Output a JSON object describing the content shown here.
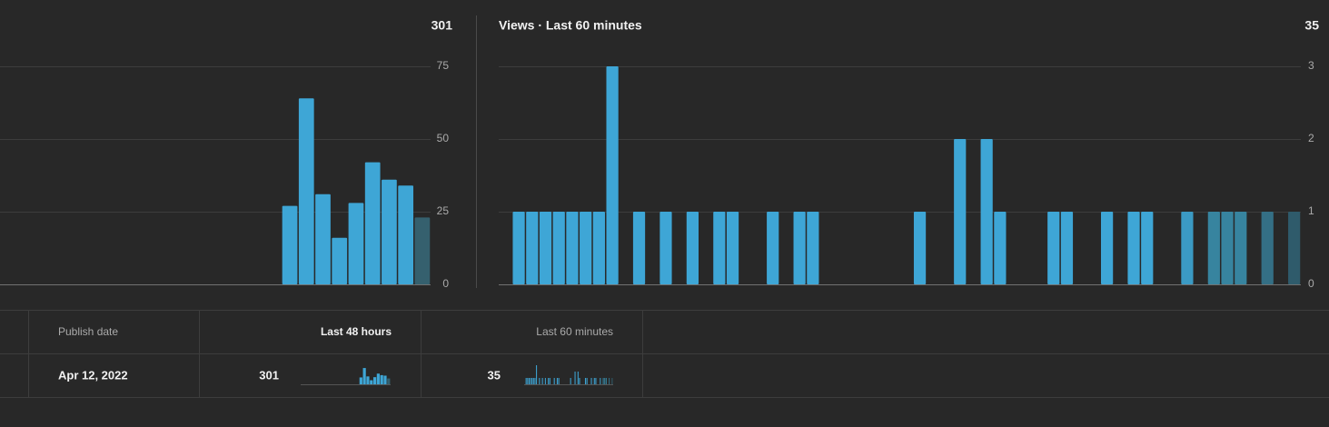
{
  "chart_data": [
    {
      "type": "bar",
      "total": 301,
      "values": [
        0,
        0,
        0,
        0,
        0,
        0,
        0,
        0,
        0,
        0,
        0,
        0,
        0,
        0,
        0,
        0,
        0,
        27,
        64,
        31,
        16,
        28,
        42,
        36,
        34,
        23
      ],
      "colors": [
        "#3ea6d6",
        "#3ea6d6",
        "#3ea6d6",
        "#3ea6d6",
        "#3ea6d6",
        "#3ea6d6",
        "#3ea6d6",
        "#3ea6d6",
        "#3ea6d6",
        "#3ea6d6",
        "#3ea6d6",
        "#3ea6d6",
        "#3ea6d6",
        "#3ea6d6",
        "#3ea6d6",
        "#3ea6d6",
        "#3ea6d6",
        "#3ea6d6",
        "#3ea6d6",
        "#3ea6d6",
        "#3ea6d6",
        "#3ea6d6",
        "#3ea6d6",
        "#3ea6d6",
        "#3ea6d6",
        "#35606e"
      ],
      "ylim": [
        0,
        75
      ],
      "yticks": [
        0,
        25,
        50,
        75
      ],
      "grid": true
    },
    {
      "type": "bar",
      "title": "Views · Last 60 minutes",
      "total": 35,
      "values": [
        0,
        1,
        1,
        1,
        1,
        1,
        1,
        1,
        3,
        0,
        1,
        0,
        1,
        0,
        1,
        0,
        1,
        1,
        0,
        0,
        1,
        0,
        1,
        1,
        0,
        0,
        0,
        0,
        0,
        0,
        0,
        1,
        0,
        0,
        2,
        0,
        2,
        1,
        0,
        0,
        0,
        1,
        1,
        0,
        0,
        1,
        0,
        1,
        1,
        0,
        0,
        1,
        0,
        1,
        1,
        1,
        0,
        1,
        0,
        1
      ],
      "colors": [
        "#3ea6d6",
        "#3ea6d6",
        "#3ea6d6",
        "#3ea6d6",
        "#3ea6d6",
        "#3ea6d6",
        "#3ea6d6",
        "#3ea6d6",
        "#3ea6d6",
        "#3ea6d6",
        "#3ea6d6",
        "#3ea6d6",
        "#3ea6d6",
        "#3ea6d6",
        "#3ea6d6",
        "#3ea6d6",
        "#3ea6d6",
        "#3ea6d6",
        "#3ea6d6",
        "#3ea6d6",
        "#3ea6d6",
        "#3ea6d6",
        "#3ea6d6",
        "#3ea6d6",
        "#3ea6d6",
        "#3ea6d6",
        "#3ea6d6",
        "#3ea6d6",
        "#3ea6d6",
        "#3ea6d6",
        "#3ea6d6",
        "#3ea6d6",
        "#3ea6d6",
        "#3ea6d6",
        "#3ea6d6",
        "#3ea6d6",
        "#3ea6d6",
        "#3ea6d6",
        "#3ea6d6",
        "#3ea6d6",
        "#3ea6d6",
        "#3ea6d6",
        "#3ea6d6",
        "#3ea6d6",
        "#3ea6d6",
        "#3ea6d6",
        "#3ea6d6",
        "#3ea6d6",
        "#3ea6d6",
        "#3ea6d6",
        "#3ea6d6",
        "#3b9ac4",
        "#3b9ac4",
        "#37849f",
        "#37849f",
        "#37849f",
        "#37849f",
        "#346f85",
        "#346f85",
        "#2f5b6b"
      ],
      "ylim": [
        0,
        3
      ],
      "yticks": [
        0,
        1,
        2,
        3
      ],
      "grid": true
    }
  ],
  "table": {
    "headers": [
      "Publish date",
      "Last 48 hours",
      "Last 60 minutes"
    ],
    "rows": [
      [
        "Apr 12, 2022"
      ]
    ]
  }
}
